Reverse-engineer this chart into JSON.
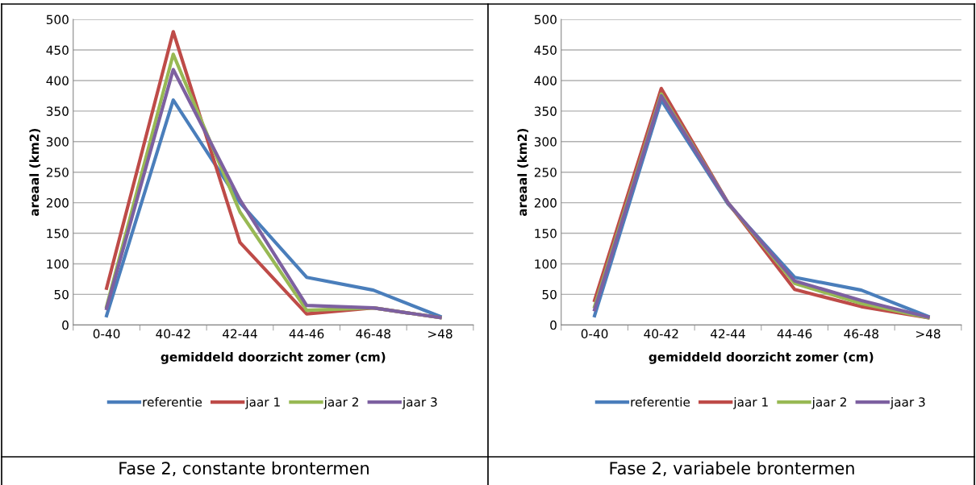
{
  "chart_data": [
    {
      "type": "line",
      "xlabel": "gemiddeld doorzicht zomer (cm)",
      "ylabel": "areaal (km2)",
      "categories": [
        "0-40",
        "40-42",
        "42-44",
        "44-46",
        "46-48",
        ">48"
      ],
      "ylim": [
        0,
        500
      ],
      "yticks": [
        0,
        50,
        100,
        150,
        200,
        250,
        300,
        350,
        400,
        450,
        500
      ],
      "grid": "y",
      "legend": "bottom",
      "marker": "none",
      "line_style": "solid",
      "annotations": [
        "Fase 2, constante brontermen"
      ],
      "series": [
        {
          "name": "referentie",
          "color": "#4a7ebb",
          "values": [
            15,
            368,
            200,
            78,
            57,
            14
          ]
        },
        {
          "name": "jaar 1",
          "color": "#be4b48",
          "values": [
            60,
            480,
            135,
            18,
            28,
            12
          ]
        },
        {
          "name": "jaar 2",
          "color": "#98b954",
          "values": [
            30,
            443,
            185,
            24,
            28,
            12
          ]
        },
        {
          "name": "jaar 3",
          "color": "#7d60a0",
          "values": [
            27,
            418,
            205,
            32,
            28,
            12
          ]
        }
      ]
    },
    {
      "type": "line",
      "xlabel": "gemiddeld doorzicht zomer (cm)",
      "ylabel": "areaal (km2)",
      "categories": [
        "0-40",
        "40-42",
        "42-44",
        "44-46",
        "46-48",
        ">48"
      ],
      "ylim": [
        0,
        500
      ],
      "yticks": [
        0,
        50,
        100,
        150,
        200,
        250,
        300,
        350,
        400,
        450,
        500
      ],
      "grid": "y",
      "legend": "bottom",
      "marker": "none",
      "line_style": "solid",
      "annotations": [
        "Fase 2, variabele brontermen"
      ],
      "series": [
        {
          "name": "referentie",
          "color": "#4a7ebb",
          "values": [
            15,
            368,
            198,
            78,
            57,
            14
          ]
        },
        {
          "name": "jaar 1",
          "color": "#be4b48",
          "values": [
            40,
            387,
            200,
            58,
            30,
            12
          ]
        },
        {
          "name": "jaar 2",
          "color": "#98b954",
          "values": [
            30,
            378,
            200,
            68,
            35,
            12
          ]
        },
        {
          "name": "jaar 3",
          "color": "#7d60a0",
          "values": [
            25,
            375,
            200,
            72,
            40,
            13
          ]
        }
      ]
    }
  ]
}
